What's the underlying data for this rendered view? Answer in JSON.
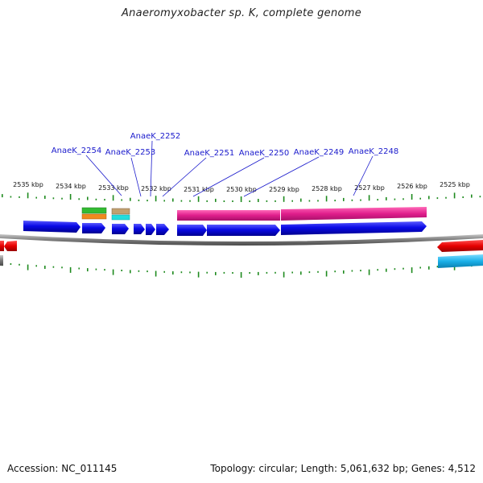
{
  "title": "Anaeromyxobacter sp. K, complete genome",
  "footer": {
    "accession": "Accession: NC_011145",
    "summary": "Topology: circular; Length: 5,061,632 bp; Genes: 4,512"
  },
  "ticks": [
    "2535 kbp",
    "2534 kbp",
    "2533 kbp",
    "2532 kbp",
    "2531 kbp",
    "2530 kbp",
    "2529 kbp",
    "2528 kbp",
    "2527 kbp",
    "2526 kbp",
    "2525 kbp"
  ],
  "gene_labels": [
    "AnaeK_2254",
    "AnaeK_2253",
    "AnaeK_2252",
    "AnaeK_2251",
    "AnaeK_2250",
    "AnaeK_2249",
    "AnaeK_2248"
  ],
  "colors": {
    "cds": "#0a0ae6",
    "rna": "#e01e8c",
    "other_strand": "#e60000",
    "misc_green": "#33bb33",
    "misc_orange": "#f08a1e",
    "misc_tan": "#c0a070",
    "misc_cyan": "#22dddd",
    "cyan_track": "#1ab0e8",
    "backbone": "#7a7a7a",
    "tick": "#1e8a1e",
    "label": "#1a1acc"
  }
}
